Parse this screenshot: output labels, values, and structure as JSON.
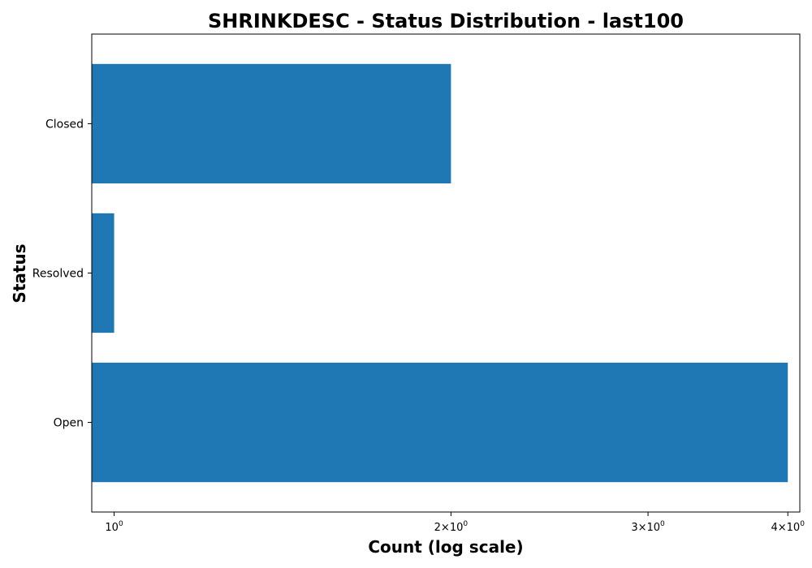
{
  "chart_data": {
    "type": "bar",
    "orientation": "horizontal",
    "title": "SHRINKDESC - Status Distribution - last100",
    "xlabel": "Count (log scale)",
    "ylabel": "Status",
    "x_scale": "log",
    "xlim": [
      0.955,
      4.1
    ],
    "categories": [
      "Closed",
      "Resolved",
      "Open"
    ],
    "values": [
      2,
      1,
      4
    ],
    "x_ticks": [
      {
        "value": 1,
        "base": "10",
        "exp": "0"
      },
      {
        "value": 2,
        "base": "2×10",
        "exp": "0"
      },
      {
        "value": 3,
        "base": "3×10",
        "exp": "0"
      },
      {
        "value": 4,
        "base": "4×10",
        "exp": "0"
      }
    ],
    "bar_color": "#1f77b4",
    "grid": false,
    "legend": false
  }
}
